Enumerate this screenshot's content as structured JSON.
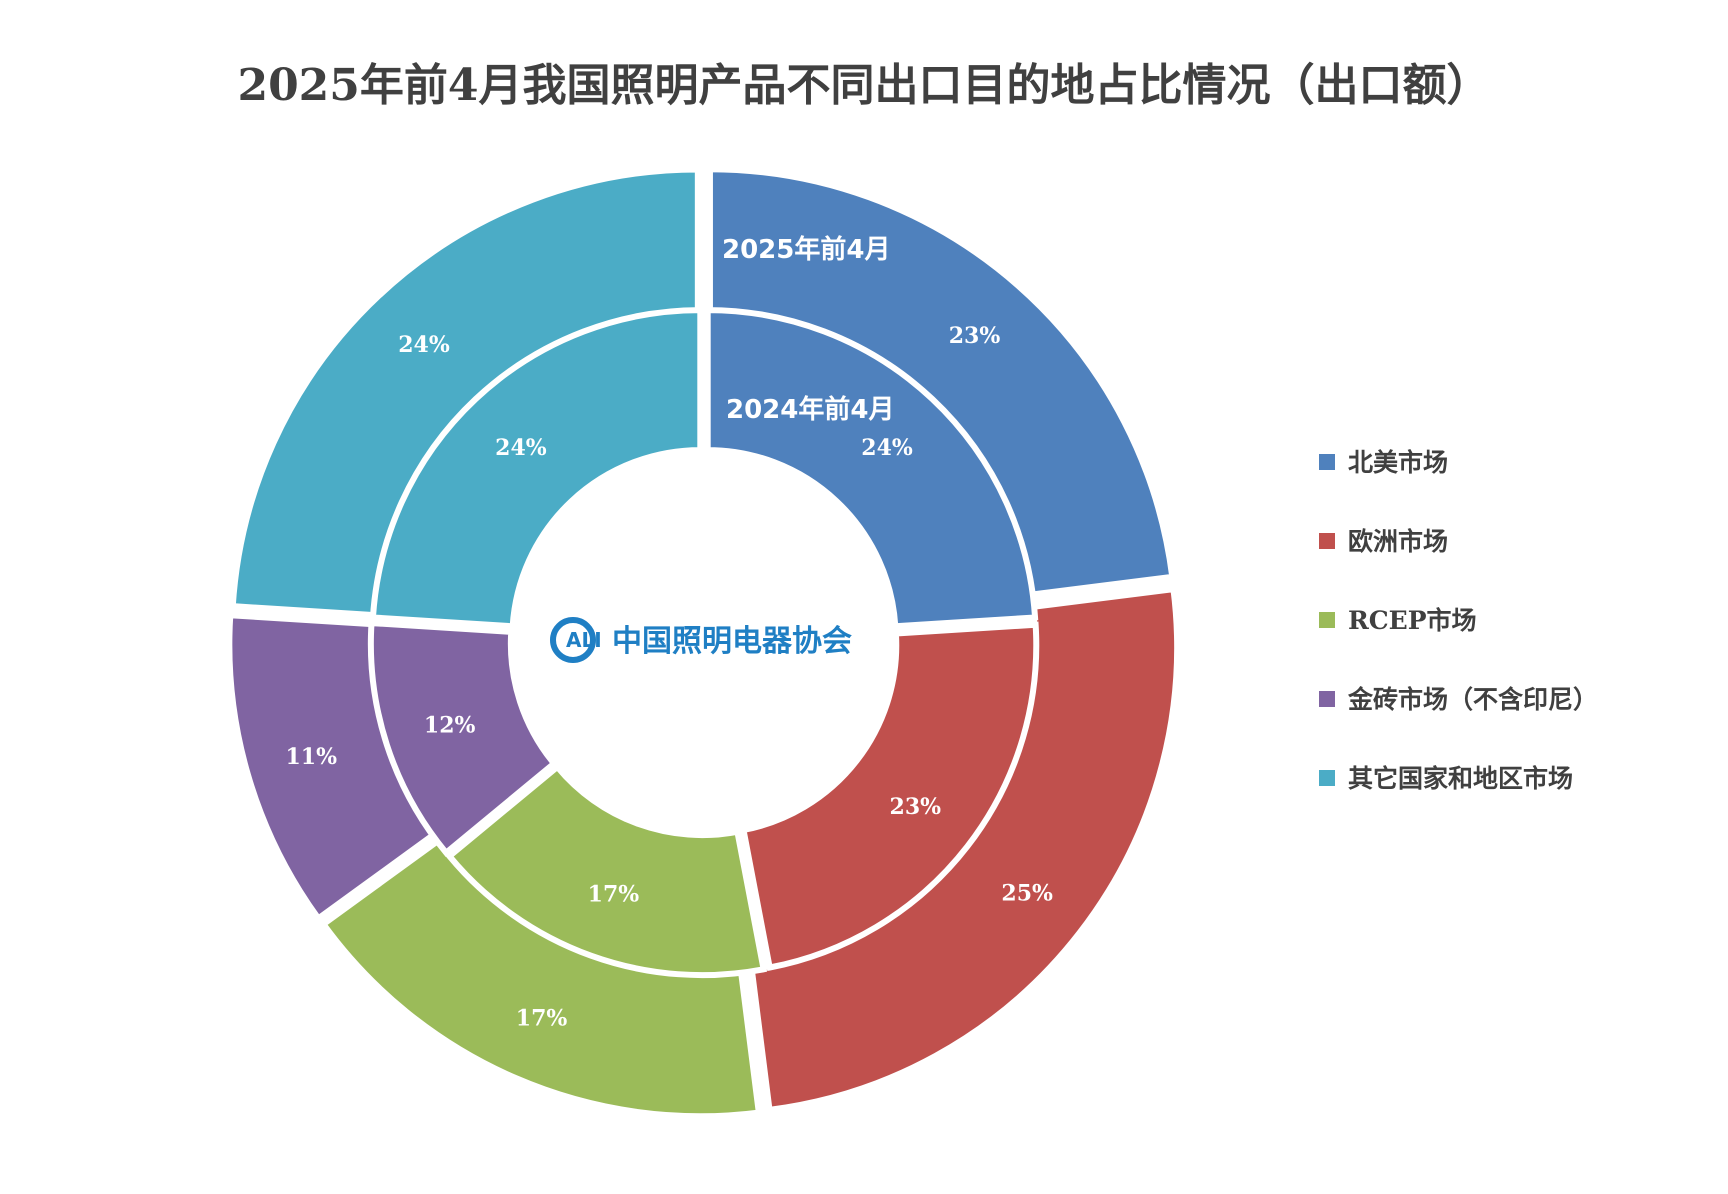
{
  "chart_data": {
    "type": "donut",
    "title": "2025年前4月我国照明产品不同出口目的地占比情况（出口额）",
    "categories": [
      "北美市场",
      "欧洲市场",
      "RCEP市场",
      "金砖市场（不含印尼）",
      "其它国家和地区市场"
    ],
    "colors": [
      "#4f81bd",
      "#c0504d",
      "#9bbb59",
      "#8064a2",
      "#4bacc6"
    ],
    "series": [
      {
        "name": "2025年前4月",
        "ring": "outer",
        "values": [
          23,
          25,
          17,
          11,
          24
        ],
        "labels": [
          "23%",
          "25%",
          "17%",
          "11%",
          "24%"
        ]
      },
      {
        "name": "2024年前4月",
        "ring": "inner",
        "values": [
          24,
          23,
          17,
          12,
          24
        ],
        "labels": [
          "24%",
          "23%",
          "17%",
          "12%",
          "24%"
        ]
      }
    ],
    "legend_position": "right"
  },
  "logo": {
    "letters": "ALI",
    "name": "中国照明电器协会"
  }
}
